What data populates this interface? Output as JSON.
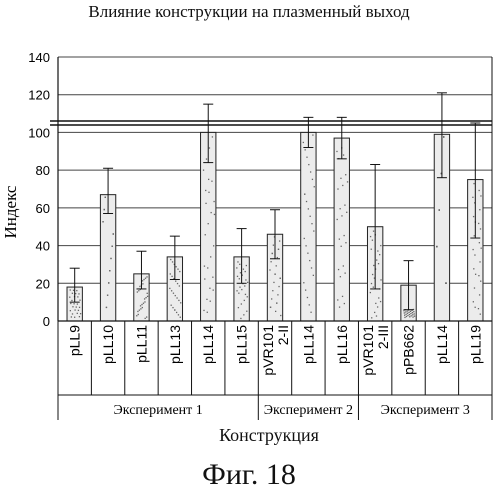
{
  "chart_data": {
    "type": "bar",
    "title": "Влияние конструкции на плазменный выход",
    "xlabel": "Конструкция",
    "ylabel": "Индекс",
    "ylim": [
      0,
      140
    ],
    "yticks": [
      "0",
      "20",
      "40",
      "60",
      "80",
      "100",
      "120",
      "140"
    ],
    "reference_line": 105,
    "grid": true,
    "categories": [
      "pLL9",
      "pLL10",
      "pLL11",
      "pLL13",
      "pLL14",
      "pLL15",
      "pVR101 2-II",
      "pLL14",
      "pLL16",
      "pVR101 2-III",
      "pPB662",
      "pLL14",
      "pLL19"
    ],
    "values": [
      18,
      67,
      25,
      34,
      100,
      34,
      46,
      100,
      97,
      50,
      19,
      99,
      75
    ],
    "error_high": [
      28,
      81,
      37,
      45,
      115,
      49,
      59,
      108,
      108,
      83,
      32,
      121,
      105
    ],
    "error_low": [
      10,
      57,
      17,
      22,
      84,
      20,
      33,
      92,
      86,
      17,
      6,
      76,
      44
    ],
    "groups": [
      {
        "label": "Эксперимент 1",
        "count": 6
      },
      {
        "label": "Эксперимент 2",
        "count": 3
      },
      {
        "label": "Эксперимент 3",
        "count": 4
      }
    ]
  },
  "figure_caption": "Фиг. 18"
}
